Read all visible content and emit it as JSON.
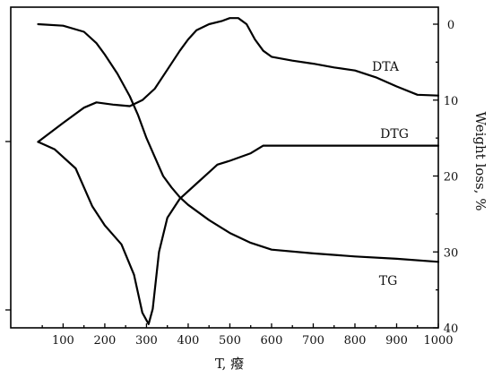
{
  "chart_data": {
    "type": "line",
    "xlabel": "T, 癈",
    "ylabel_right": "Weight loss, %",
    "xlim": [
      40,
      1000
    ],
    "ylim_right": [
      40,
      -3
    ],
    "x_ticks": [
      "100",
      "200",
      "300",
      "400",
      "500",
      "600",
      "700",
      "800",
      "900",
      "1000"
    ],
    "y_right_ticks": [
      "0",
      "10",
      "20",
      "30",
      "40"
    ],
    "series": [
      {
        "name": "DTA",
        "axis": "relative",
        "x": [
          40,
          100,
          150,
          180,
          220,
          260,
          290,
          320,
          350,
          380,
          400,
          420,
          450,
          480,
          500,
          520,
          540,
          560,
          580,
          600,
          650,
          700,
          750,
          800,
          850,
          900,
          950,
          1000
        ],
        "y": [
          -15.5,
          -13.0,
          -11.0,
          -10.3,
          -10.6,
          -10.8,
          -10.0,
          -8.5,
          -6.0,
          -3.5,
          -2.0,
          -0.8,
          0.0,
          0.4,
          0.8,
          0.8,
          0.0,
          -2.0,
          -3.5,
          -4.3,
          -4.8,
          -5.2,
          -5.7,
          -6.1,
          -7.0,
          -8.2,
          -9.3,
          -9.4
        ]
      },
      {
        "name": "DTG",
        "axis": "relative",
        "x": [
          40,
          80,
          130,
          170,
          200,
          240,
          270,
          290,
          305,
          315,
          330,
          350,
          380,
          420,
          450,
          470,
          500,
          550,
          580,
          700,
          800,
          900,
          1000
        ],
        "y": [
          -15.5,
          -16.5,
          -19.0,
          -24.0,
          -26.5,
          -29.0,
          -33.0,
          -38.0,
          -39.5,
          -37.5,
          -30.0,
          -25.5,
          -23.0,
          -21.0,
          -19.5,
          -18.5,
          -18.0,
          -17.0,
          -16.0,
          -16.0,
          -16.0,
          -16.0,
          -16.0
        ]
      },
      {
        "name": "TG",
        "axis": "right",
        "x": [
          40,
          100,
          150,
          180,
          200,
          230,
          260,
          280,
          300,
          320,
          340,
          360,
          380,
          400,
          450,
          500,
          550,
          600,
          700,
          800,
          900,
          1000
        ],
        "y": [
          0.0,
          0.2,
          1.0,
          2.5,
          4.0,
          6.5,
          9.5,
          12.0,
          15.0,
          17.5,
          20.0,
          21.5,
          22.8,
          23.8,
          25.8,
          27.5,
          28.8,
          29.7,
          30.2,
          30.6,
          30.9,
          31.3
        ]
      }
    ],
    "legend": "curve-labels",
    "curve_labels": [
      "DTA",
      "DTG",
      "TG"
    ],
    "grid": false
  }
}
